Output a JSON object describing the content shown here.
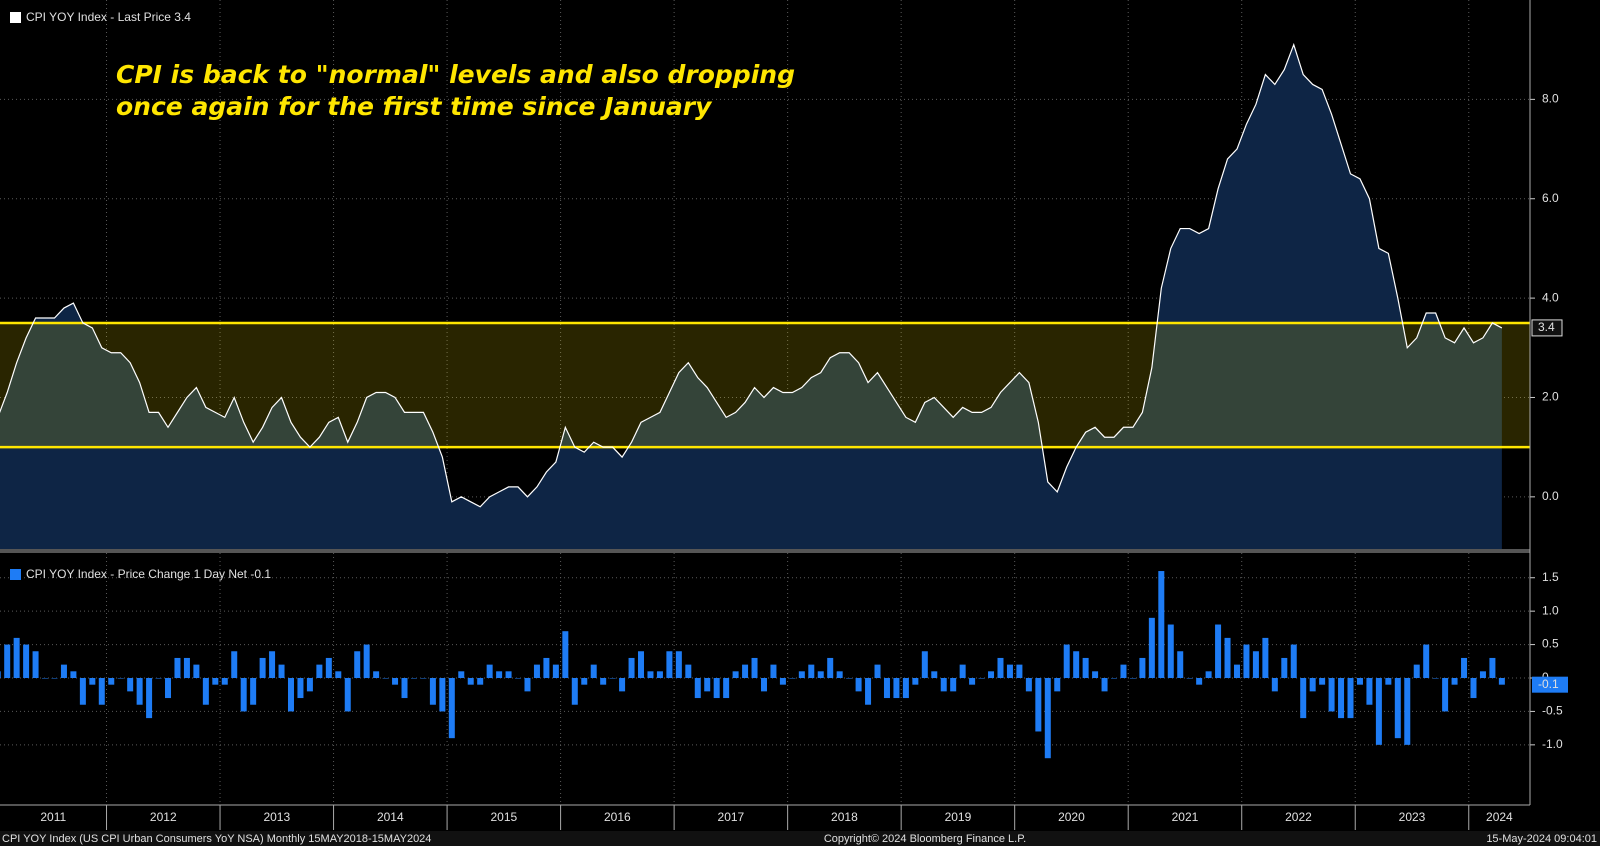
{
  "chart_data": [
    {
      "type": "area",
      "series": [
        {
          "name": "CPI YOY Index - Last Price 3.4",
          "color": "#ffffff",
          "fill": "#0e2545",
          "values": [
            1.6,
            2.1,
            2.7,
            3.2,
            3.6,
            3.6,
            3.6,
            3.8,
            3.9,
            3.5,
            3.4,
            3.0,
            2.9,
            2.9,
            2.7,
            2.3,
            1.7,
            1.7,
            1.4,
            1.7,
            2.0,
            2.2,
            1.8,
            1.7,
            1.6,
            2.0,
            1.5,
            1.1,
            1.4,
            1.8,
            2.0,
            1.5,
            1.2,
            1.0,
            1.2,
            1.5,
            1.6,
            1.1,
            1.5,
            2.0,
            2.1,
            2.1,
            2.0,
            1.7,
            1.7,
            1.7,
            1.3,
            0.8,
            -0.1,
            0.0,
            -0.1,
            -0.2,
            0.0,
            0.1,
            0.2,
            0.2,
            0.0,
            0.2,
            0.5,
            0.7,
            1.4,
            1.0,
            0.9,
            1.1,
            1.0,
            1.0,
            0.8,
            1.1,
            1.5,
            1.6,
            1.7,
            2.1,
            2.5,
            2.7,
            2.4,
            2.2,
            1.9,
            1.6,
            1.7,
            1.9,
            2.2,
            2.0,
            2.2,
            2.1,
            2.1,
            2.2,
            2.4,
            2.5,
            2.8,
            2.9,
            2.9,
            2.7,
            2.3,
            2.5,
            2.2,
            1.9,
            1.6,
            1.5,
            1.9,
            2.0,
            1.8,
            1.6,
            1.8,
            1.7,
            1.7,
            1.8,
            2.1,
            2.3,
            2.5,
            2.3,
            1.5,
            0.3,
            0.1,
            0.6,
            1.0,
            1.3,
            1.4,
            1.2,
            1.2,
            1.4,
            1.4,
            1.7,
            2.6,
            4.2,
            5.0,
            5.4,
            5.4,
            5.3,
            5.4,
            6.2,
            6.8,
            7.0,
            7.5,
            7.9,
            8.5,
            8.3,
            8.6,
            9.1,
            8.5,
            8.3,
            8.2,
            7.7,
            7.1,
            6.5,
            6.4,
            6.0,
            5.0,
            4.9,
            4.0,
            3.0,
            3.2,
            3.7,
            3.7,
            3.2,
            3.1,
            3.4,
            3.1,
            3.2,
            3.5,
            3.4
          ]
        }
      ],
      "annotation": [
        "CPI is back to \"normal\" levels and also dropping",
        "once again for the first time since January"
      ],
      "bands": [
        {
          "from": 1.0,
          "to": 3.5,
          "color": "#ffe600"
        }
      ],
      "ylim": [
        -1.09,
        10
      ],
      "yticks": [
        {
          "value": 0,
          "label": "0.0"
        },
        {
          "value": 2,
          "label": "2.0"
        },
        {
          "value": 4,
          "label": "4.0"
        },
        {
          "value": 6,
          "label": "6.0"
        },
        {
          "value": 8,
          "label": "8.0"
        }
      ],
      "grid": true
    },
    {
      "type": "bar",
      "series": [
        {
          "name": "CPI YOY Index - Price Change 1 Day Net -0.1",
          "color": "#1e7cf5",
          "values": [
            0.1,
            0.5,
            0.6,
            0.5,
            0.4,
            0,
            0,
            0.2,
            0.1,
            -0.4,
            -0.1,
            -0.4,
            -0.1,
            0,
            -0.2,
            -0.4,
            -0.6,
            0,
            -0.3,
            0.3,
            0.3,
            0.2,
            -0.4,
            -0.1,
            -0.1,
            0.4,
            -0.5,
            -0.4,
            0.3,
            0.4,
            0.2,
            -0.5,
            -0.3,
            -0.2,
            0.2,
            0.3,
            0.1,
            -0.5,
            0.4,
            0.5,
            0.1,
            0,
            -0.1,
            -0.3,
            0,
            0,
            -0.4,
            -0.5,
            -0.9,
            0.1,
            -0.1,
            -0.1,
            0.2,
            0.1,
            0.1,
            0,
            -0.2,
            0.2,
            0.3,
            0.2,
            0.7,
            -0.4,
            -0.1,
            0.2,
            -0.1,
            0,
            -0.2,
            0.3,
            0.4,
            0.1,
            0.1,
            0.4,
            0.4,
            0.2,
            -0.3,
            -0.2,
            -0.3,
            -0.3,
            0.1,
            0.2,
            0.3,
            -0.2,
            0.2,
            -0.1,
            0,
            0.1,
            0.2,
            0.1,
            0.3,
            0.1,
            0,
            -0.2,
            -0.4,
            0.2,
            -0.3,
            -0.3,
            -0.3,
            -0.1,
            0.4,
            0.1,
            -0.2,
            -0.2,
            0.2,
            -0.1,
            0,
            0.1,
            0.3,
            0.2,
            0.2,
            -0.2,
            -0.8,
            -1.2,
            -0.2,
            0.5,
            0.4,
            0.3,
            0.1,
            -0.2,
            0,
            0.2,
            0,
            0.3,
            0.9,
            1.6,
            0.8,
            0.4,
            0,
            -0.1,
            0.1,
            0.8,
            0.6,
            0.2,
            0.5,
            0.4,
            0.6,
            -0.2,
            0.3,
            0.5,
            -0.6,
            -0.2,
            -0.1,
            -0.5,
            -0.6,
            -0.6,
            -0.1,
            -0.4,
            -1.0,
            -0.1,
            -0.9,
            -1.0,
            0.2,
            0.5,
            0,
            -0.5,
            -0.1,
            0.3,
            -0.3,
            0.1,
            0.3,
            -0.1
          ]
        }
      ],
      "ylim": [
        -1.9,
        1.87
      ],
      "yticks": [
        {
          "value": -1,
          "label": "-1.0"
        },
        -0.5,
        0,
        0.5,
        {
          "value": 1,
          "label": "1.0"
        },
        1.5
      ],
      "xticks": [
        2011,
        2012,
        2013,
        2014,
        2015,
        2016,
        2017,
        2018,
        2019,
        2020,
        2021,
        2022,
        2023,
        2024
      ],
      "grid": true
    }
  ],
  "footer": {
    "left": "CPI YOY Index (US CPI Urban Consumers YoY NSA)  Monthly 15MAY2018-15MAY2024",
    "center": "Copyright© 2024 Bloomberg Finance L.P.",
    "right": "15-May-2024 09:04:01"
  }
}
